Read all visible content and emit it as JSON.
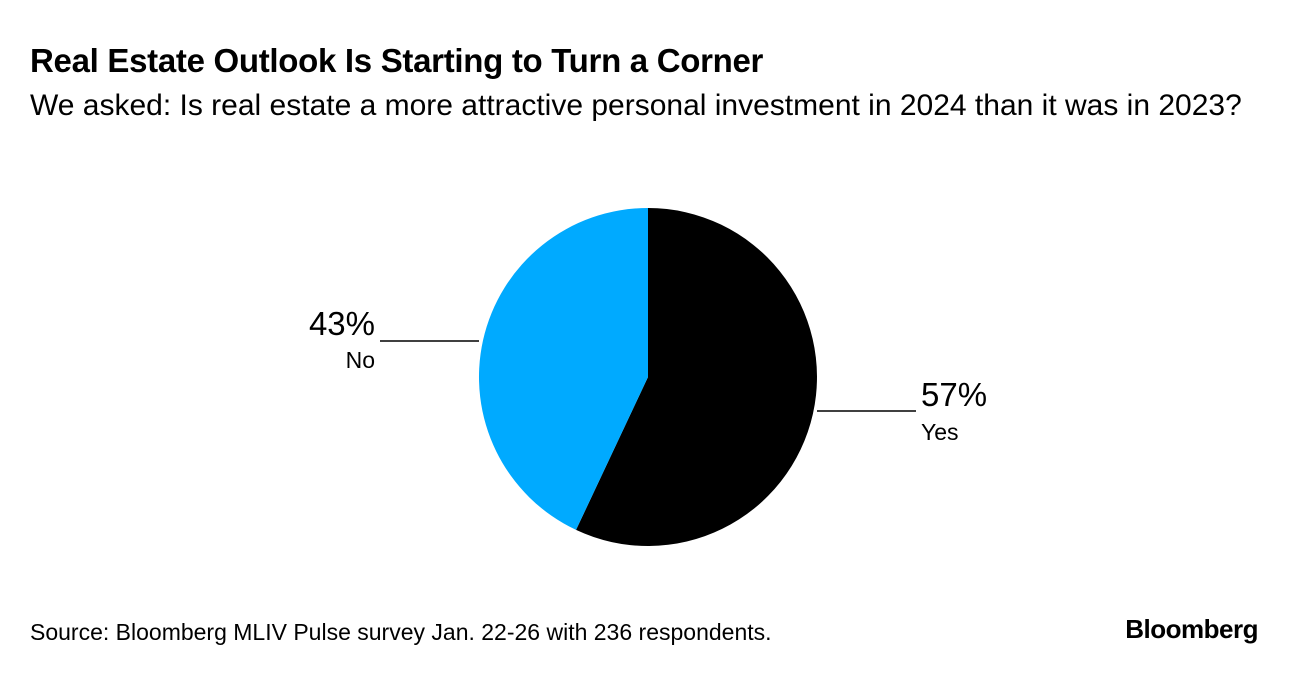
{
  "chart_data": {
    "type": "pie",
    "title": "Real Estate Outlook Is Starting to Turn a Corner",
    "subtitle": "We asked: Is real estate a more attractive personal investment in 2024 than it was in 2023?",
    "slices": [
      {
        "label": "Yes",
        "value": 57,
        "value_label": "57%",
        "color": "#000000"
      },
      {
        "label": "No",
        "value": 43,
        "value_label": "43%",
        "color": "#00aaff"
      }
    ],
    "source": "Source: Bloomberg MLIV Pulse survey Jan. 22-26 with 236 respondents."
  },
  "brand": "Bloomberg"
}
